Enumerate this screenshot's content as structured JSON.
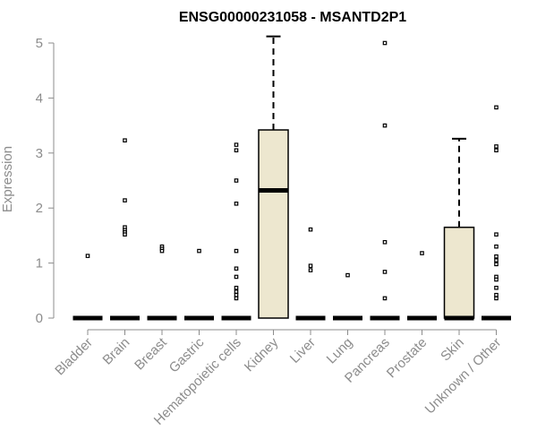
{
  "chart_data": {
    "type": "box",
    "title": "ENSG00000231058 - MSANTD2P1",
    "xlabel": "",
    "ylabel": "Expression",
    "ylim": [
      0,
      5
    ],
    "yticks": [
      0,
      1,
      2,
      3,
      4,
      5
    ],
    "box_fill": "#ede7cf",
    "categories": [
      "Bladder",
      "Brain",
      "Breast",
      "Gastric",
      "Hematopoietic cells",
      "Kidney",
      "Liver",
      "Lung",
      "Pancreas",
      "Prostate",
      "Skin",
      "Unknown / Other"
    ],
    "boxes": [
      {
        "q1": 0,
        "median": 0,
        "q3": 0,
        "whisker_low": 0,
        "whisker_high": 0,
        "outliers": [
          1.13
        ]
      },
      {
        "q1": 0,
        "median": 0,
        "q3": 0,
        "whisker_low": 0,
        "whisker_high": 0,
        "outliers": [
          3.23,
          2.14,
          1.65,
          1.6,
          1.56,
          1.52
        ]
      },
      {
        "q1": 0,
        "median": 0,
        "q3": 0,
        "whisker_low": 0,
        "whisker_high": 0,
        "outliers": [
          1.3,
          1.26,
          1.22
        ]
      },
      {
        "q1": 0,
        "median": 0,
        "q3": 0,
        "whisker_low": 0,
        "whisker_high": 0,
        "outliers": [
          1.22
        ]
      },
      {
        "q1": 0,
        "median": 0,
        "q3": 0,
        "whisker_low": 0,
        "whisker_high": 0,
        "outliers": [
          3.15,
          3.05,
          2.5,
          2.08,
          1.22,
          0.9,
          0.75,
          0.55,
          0.48,
          0.42,
          0.36
        ]
      },
      {
        "q1": 0,
        "median": 2.32,
        "q3": 3.42,
        "whisker_low": 0,
        "whisker_high": 5.12,
        "outliers": []
      },
      {
        "q1": 0,
        "median": 0,
        "q3": 0,
        "whisker_low": 0,
        "whisker_high": 0,
        "outliers": [
          1.61,
          0.95,
          0.87
        ]
      },
      {
        "q1": 0,
        "median": 0,
        "q3": 0,
        "whisker_low": 0,
        "whisker_high": 0,
        "outliers": [
          0.78
        ]
      },
      {
        "q1": 0,
        "median": 0,
        "q3": 0,
        "whisker_low": 0,
        "whisker_high": 0,
        "outliers": [
          5.0,
          3.5,
          1.38,
          0.84,
          0.36
        ]
      },
      {
        "q1": 0,
        "median": 0,
        "q3": 0,
        "whisker_low": 0,
        "whisker_high": 0,
        "outliers": [
          1.18
        ]
      },
      {
        "q1": 0,
        "median": 0,
        "q3": 1.65,
        "whisker_low": 0,
        "whisker_high": 3.26,
        "outliers": []
      },
      {
        "q1": 0,
        "median": 0,
        "q3": 0,
        "whisker_low": 0,
        "whisker_high": 0,
        "outliers": [
          3.83,
          3.12,
          3.05,
          1.52,
          1.3,
          1.12,
          1.05,
          0.98,
          0.75,
          0.7,
          0.55,
          0.42,
          0.36
        ]
      }
    ]
  }
}
